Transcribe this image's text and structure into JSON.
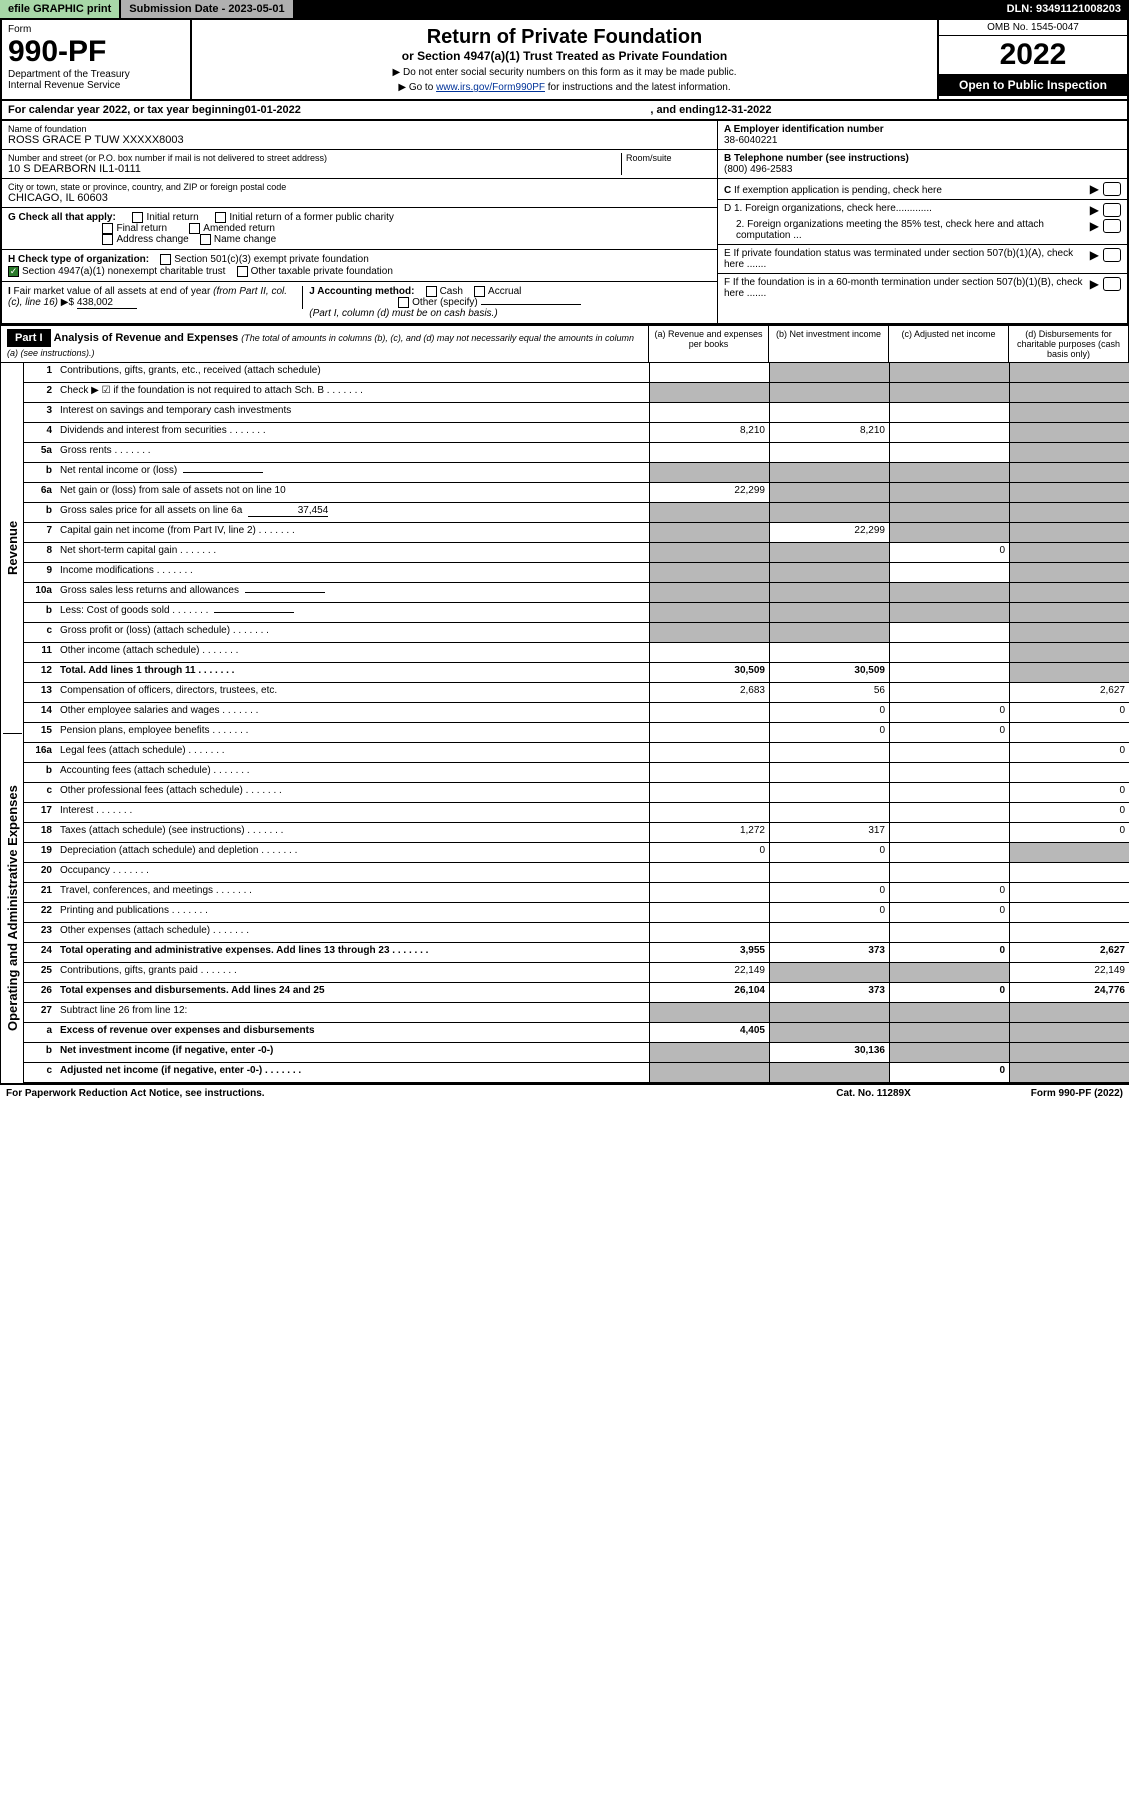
{
  "topbar": {
    "print": "efile GRAPHIC print",
    "submission": "Submission Date - 2023-05-01",
    "dln": "DLN: 93491121008203"
  },
  "formhead": {
    "form_label": "Form",
    "form_number": "990-PF",
    "dept": "Department of the Treasury",
    "irs": "Internal Revenue Service",
    "title": "Return of Private Foundation",
    "subtitle": "or Section 4947(a)(1) Trust Treated as Private Foundation",
    "note1": "▶ Do not enter social security numbers on this form as it may be made public.",
    "note2": "▶ Go to www.irs.gov/Form990PF for instructions and the latest information.",
    "omb": "OMB No. 1545-0047",
    "year": "2022",
    "open": "Open to Public Inspection"
  },
  "calrow": {
    "pre": "For calendar year 2022, or tax year beginning ",
    "begin": "01-01-2022",
    "mid": " , and ending ",
    "end": "12-31-2022"
  },
  "info": {
    "name_lbl": "Name of foundation",
    "name": "ROSS GRACE P TUW XXXXX8003",
    "addr_lbl": "Number and street (or P.O. box number if mail is not delivered to street address)",
    "addr": "10 S DEARBORN IL1-0111",
    "room_lbl": "Room/suite",
    "city_lbl": "City or town, state or province, country, and ZIP or foreign postal code",
    "city": "CHICAGO, IL  60603",
    "ein_lbl": "A Employer identification number",
    "ein": "38-6040221",
    "tel_lbl": "B Telephone number (see instructions)",
    "tel": "(800) 496-2583",
    "c_lbl": "C If exemption application is pending, check here",
    "d1": "D 1. Foreign organizations, check here.............",
    "d2": "2. Foreign organizations meeting the 85% test, check here and attach computation ...",
    "e_lbl": "E If private foundation status was terminated under section 507(b)(1)(A), check here .......",
    "f_lbl": "F If the foundation is in a 60-month termination under section 507(b)(1)(B), check here .......",
    "g_lbl": "G Check all that apply:",
    "g_opts": [
      "Initial return",
      "Initial return of a former public charity",
      "Final return",
      "Amended return",
      "Address change",
      "Name change"
    ],
    "h_lbl": "H Check type of organization:",
    "h_opts": [
      "Section 501(c)(3) exempt private foundation",
      "Section 4947(a)(1) nonexempt charitable trust",
      "Other taxable private foundation"
    ],
    "i_lbl": "I Fair market value of all assets at end of year (from Part II, col. (c), line 16) ▶$",
    "i_val": "438,002",
    "j_lbl": "J Accounting method:",
    "j_opts": [
      "Cash",
      "Accrual",
      "Other (specify)"
    ],
    "j_note": "(Part I, column (d) must be on cash basis.)"
  },
  "part1": {
    "label": "Part I",
    "title": "Analysis of Revenue and Expenses",
    "title_note": "(The total of amounts in columns (b), (c), and (d) may not necessarily equal the amounts in column (a) (see instructions).)",
    "col_a": "(a) Revenue and expenses per books",
    "col_b": "(b) Net investment income",
    "col_c": "(c) Adjusted net income",
    "col_d": "(d) Disbursements for charitable purposes (cash basis only)",
    "side_rev": "Revenue",
    "side_exp": "Operating and Administrative Expenses"
  },
  "rows": [
    {
      "n": "1",
      "d": "Contributions, gifts, grants, etc., received (attach schedule)",
      "a": "",
      "b": "g",
      "c": "g",
      "dd": "g"
    },
    {
      "n": "2",
      "d": "Check ▶ ☑ if the foundation is not required to attach Sch. B",
      "a": "g",
      "b": "g",
      "c": "g",
      "dd": "g",
      "dots": true
    },
    {
      "n": "3",
      "d": "Interest on savings and temporary cash investments",
      "a": "",
      "b": "",
      "c": "",
      "dd": "g"
    },
    {
      "n": "4",
      "d": "Dividends and interest from securities",
      "a": "8,210",
      "b": "8,210",
      "c": "",
      "dd": "g",
      "dots": true
    },
    {
      "n": "5a",
      "d": "Gross rents",
      "a": "",
      "b": "",
      "c": "",
      "dd": "g",
      "dots": true
    },
    {
      "n": "b",
      "d": "Net rental income or (loss)",
      "a": "g",
      "b": "g",
      "c": "g",
      "dd": "g",
      "ul": true
    },
    {
      "n": "6a",
      "d": "Net gain or (loss) from sale of assets not on line 10",
      "a": "22,299",
      "b": "g",
      "c": "g",
      "dd": "g"
    },
    {
      "n": "b",
      "d": "Gross sales price for all assets on line 6a",
      "a": "g",
      "b": "g",
      "c": "g",
      "dd": "g",
      "ul": true,
      "ulval": "37,454"
    },
    {
      "n": "7",
      "d": "Capital gain net income (from Part IV, line 2)",
      "a": "g",
      "b": "22,299",
      "c": "g",
      "dd": "g",
      "dots": true
    },
    {
      "n": "8",
      "d": "Net short-term capital gain",
      "a": "g",
      "b": "g",
      "c": "0",
      "dd": "g",
      "dots": true
    },
    {
      "n": "9",
      "d": "Income modifications",
      "a": "g",
      "b": "g",
      "c": "",
      "dd": "g",
      "dots": true
    },
    {
      "n": "10a",
      "d": "Gross sales less returns and allowances",
      "a": "g",
      "b": "g",
      "c": "g",
      "dd": "g",
      "ul": true
    },
    {
      "n": "b",
      "d": "Less: Cost of goods sold",
      "a": "g",
      "b": "g",
      "c": "g",
      "dd": "g",
      "ul": true,
      "dots": true
    },
    {
      "n": "c",
      "d": "Gross profit or (loss) (attach schedule)",
      "a": "g",
      "b": "g",
      "c": "",
      "dd": "g",
      "dots": true
    },
    {
      "n": "11",
      "d": "Other income (attach schedule)",
      "a": "",
      "b": "",
      "c": "",
      "dd": "g",
      "dots": true
    },
    {
      "n": "12",
      "d": "Total. Add lines 1 through 11",
      "a": "30,509",
      "b": "30,509",
      "c": "",
      "dd": "g",
      "bold": true,
      "dots": true
    },
    {
      "n": "13",
      "d": "Compensation of officers, directors, trustees, etc.",
      "a": "2,683",
      "b": "56",
      "c": "",
      "dd": "2,627"
    },
    {
      "n": "14",
      "d": "Other employee salaries and wages",
      "a": "",
      "b": "0",
      "c": "0",
      "dd": "0",
      "dots": true
    },
    {
      "n": "15",
      "d": "Pension plans, employee benefits",
      "a": "",
      "b": "0",
      "c": "0",
      "dd": "",
      "dots": true
    },
    {
      "n": "16a",
      "d": "Legal fees (attach schedule)",
      "a": "",
      "b": "",
      "c": "",
      "dd": "0",
      "dots": true
    },
    {
      "n": "b",
      "d": "Accounting fees (attach schedule)",
      "a": "",
      "b": "",
      "c": "",
      "dd": "",
      "dots": true
    },
    {
      "n": "c",
      "d": "Other professional fees (attach schedule)",
      "a": "",
      "b": "",
      "c": "",
      "dd": "0",
      "dots": true
    },
    {
      "n": "17",
      "d": "Interest",
      "a": "",
      "b": "",
      "c": "",
      "dd": "0",
      "dots": true
    },
    {
      "n": "18",
      "d": "Taxes (attach schedule) (see instructions)",
      "a": "1,272",
      "b": "317",
      "c": "",
      "dd": "0",
      "dots": true
    },
    {
      "n": "19",
      "d": "Depreciation (attach schedule) and depletion",
      "a": "0",
      "b": "0",
      "c": "",
      "dd": "g",
      "dots": true
    },
    {
      "n": "20",
      "d": "Occupancy",
      "a": "",
      "b": "",
      "c": "",
      "dd": "",
      "dots": true
    },
    {
      "n": "21",
      "d": "Travel, conferences, and meetings",
      "a": "",
      "b": "0",
      "c": "0",
      "dd": "",
      "dots": true
    },
    {
      "n": "22",
      "d": "Printing and publications",
      "a": "",
      "b": "0",
      "c": "0",
      "dd": "",
      "dots": true
    },
    {
      "n": "23",
      "d": "Other expenses (attach schedule)",
      "a": "",
      "b": "",
      "c": "",
      "dd": "",
      "dots": true
    },
    {
      "n": "24",
      "d": "Total operating and administrative expenses. Add lines 13 through 23",
      "a": "3,955",
      "b": "373",
      "c": "0",
      "dd": "2,627",
      "bold": true,
      "dots": true
    },
    {
      "n": "25",
      "d": "Contributions, gifts, grants paid",
      "a": "22,149",
      "b": "g",
      "c": "g",
      "dd": "22,149",
      "dots": true
    },
    {
      "n": "26",
      "d": "Total expenses and disbursements. Add lines 24 and 25",
      "a": "26,104",
      "b": "373",
      "c": "0",
      "dd": "24,776",
      "bold": true
    },
    {
      "n": "27",
      "d": "Subtract line 26 from line 12:",
      "a": "g",
      "b": "g",
      "c": "g",
      "dd": "g"
    },
    {
      "n": "a",
      "d": "Excess of revenue over expenses and disbursements",
      "a": "4,405",
      "b": "g",
      "c": "g",
      "dd": "g",
      "bold": true
    },
    {
      "n": "b",
      "d": "Net investment income (if negative, enter -0-)",
      "a": "g",
      "b": "30,136",
      "c": "g",
      "dd": "g",
      "bold": true
    },
    {
      "n": "c",
      "d": "Adjusted net income (if negative, enter -0-)",
      "a": "g",
      "b": "g",
      "c": "0",
      "dd": "g",
      "bold": true,
      "dots": true
    }
  ],
  "footer": {
    "left": "For Paperwork Reduction Act Notice, see instructions.",
    "mid": "Cat. No. 11289X",
    "right": "Form 990-PF (2022)"
  }
}
